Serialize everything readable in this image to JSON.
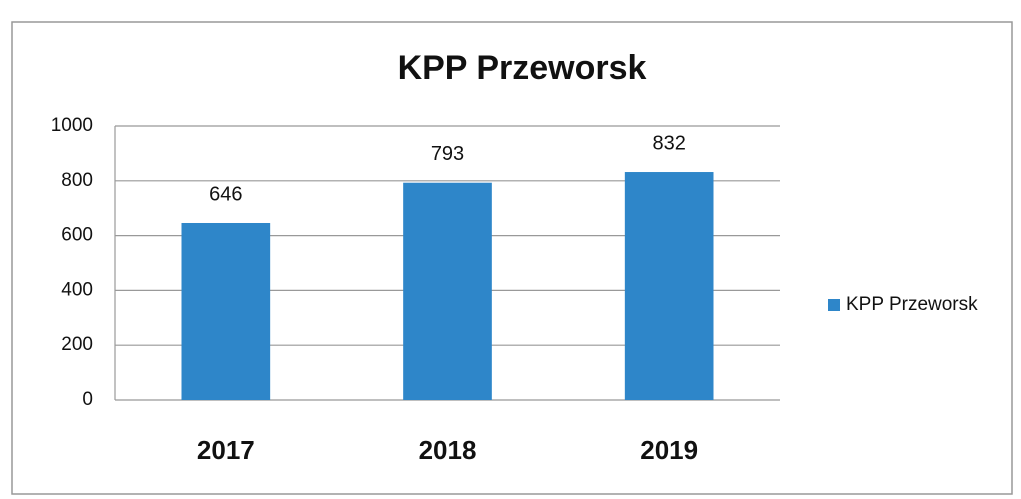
{
  "chart_data": {
    "type": "bar",
    "title": "KPP Przeworsk",
    "categories": [
      "2017",
      "2018",
      "2019"
    ],
    "series": [
      {
        "name": "KPP Przeworsk",
        "color": "#2e86c9",
        "values": [
          646,
          793,
          832
        ]
      }
    ],
    "ylim": [
      0,
      1000
    ],
    "yticks": [
      0,
      200,
      400,
      600,
      800,
      1000
    ],
    "grid": true,
    "legend": "right"
  }
}
